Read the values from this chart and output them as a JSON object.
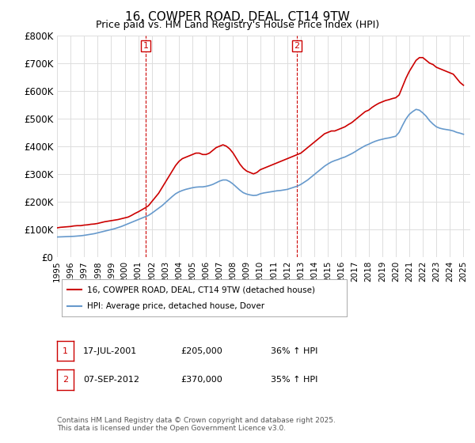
{
  "title": "16, COWPER ROAD, DEAL, CT14 9TW",
  "subtitle": "Price paid vs. HM Land Registry's House Price Index (HPI)",
  "xlabel": "",
  "ylabel": "",
  "ylim": [
    0,
    800000
  ],
  "xlim": [
    1995.0,
    2025.5
  ],
  "ytick_labels": [
    "£0",
    "£100K",
    "£200K",
    "£300K",
    "£400K",
    "£500K",
    "£600K",
    "£700K",
    "£800K"
  ],
  "ytick_values": [
    0,
    100000,
    200000,
    300000,
    400000,
    500000,
    600000,
    700000,
    800000
  ],
  "xtick_values": [
    1995,
    1996,
    1997,
    1998,
    1999,
    2000,
    2001,
    2002,
    2003,
    2004,
    2005,
    2006,
    2007,
    2008,
    2009,
    2010,
    2011,
    2012,
    2013,
    2014,
    2015,
    2016,
    2017,
    2018,
    2019,
    2020,
    2021,
    2022,
    2023,
    2024,
    2025
  ],
  "vline1_x": 2001.54,
  "vline1_label": "1",
  "vline1_date": "17-JUL-2001",
  "vline1_price": "£205,000",
  "vline1_hpi": "36% ↑ HPI",
  "vline2_x": 2012.69,
  "vline2_label": "2",
  "vline2_date": "07-SEP-2012",
  "vline2_price": "£370,000",
  "vline2_hpi": "35% ↑ HPI",
  "red_line_color": "#cc0000",
  "blue_line_color": "#6699cc",
  "background_color": "#ffffff",
  "grid_color": "#dddddd",
  "legend_label_red": "16, COWPER ROAD, DEAL, CT14 9TW (detached house)",
  "legend_label_blue": "HPI: Average price, detached house, Dover",
  "footnote": "Contains HM Land Registry data © Crown copyright and database right 2025.\nThis data is licensed under the Open Government Licence v3.0.",
  "red_x": [
    1995.0,
    1995.25,
    1995.5,
    1995.75,
    1996.0,
    1996.25,
    1996.5,
    1996.75,
    1997.0,
    1997.25,
    1997.5,
    1997.75,
    1998.0,
    1998.25,
    1998.5,
    1998.75,
    1999.0,
    1999.25,
    1999.5,
    1999.75,
    2000.0,
    2000.25,
    2000.5,
    2000.75,
    2001.0,
    2001.25,
    2001.5,
    2001.75,
    2002.0,
    2002.25,
    2002.5,
    2002.75,
    2003.0,
    2003.25,
    2003.5,
    2003.75,
    2004.0,
    2004.25,
    2004.5,
    2004.75,
    2005.0,
    2005.25,
    2005.5,
    2005.75,
    2006.0,
    2006.25,
    2006.5,
    2006.75,
    2007.0,
    2007.25,
    2007.5,
    2007.75,
    2008.0,
    2008.25,
    2008.5,
    2008.75,
    2009.0,
    2009.25,
    2009.5,
    2009.75,
    2010.0,
    2010.25,
    2010.5,
    2010.75,
    2011.0,
    2011.25,
    2011.5,
    2011.75,
    2012.0,
    2012.25,
    2012.5,
    2012.75,
    2013.0,
    2013.25,
    2013.5,
    2013.75,
    2014.0,
    2014.25,
    2014.5,
    2014.75,
    2015.0,
    2015.25,
    2015.5,
    2015.75,
    2016.0,
    2016.25,
    2016.5,
    2016.75,
    2017.0,
    2017.25,
    2017.5,
    2017.75,
    2018.0,
    2018.25,
    2018.5,
    2018.75,
    2019.0,
    2019.25,
    2019.5,
    2019.75,
    2020.0,
    2020.25,
    2020.5,
    2020.75,
    2021.0,
    2021.25,
    2021.5,
    2021.75,
    2022.0,
    2022.25,
    2022.5,
    2022.75,
    2023.0,
    2023.25,
    2023.5,
    2023.75,
    2024.0,
    2024.25,
    2024.5,
    2024.75,
    2025.0
  ],
  "red_y": [
    105000,
    107000,
    108000,
    109000,
    110000,
    112000,
    113000,
    113000,
    115000,
    116000,
    118000,
    119000,
    121000,
    124000,
    127000,
    129000,
    131000,
    133000,
    135000,
    138000,
    141000,
    144000,
    150000,
    157000,
    163000,
    170000,
    177000,
    185000,
    200000,
    215000,
    230000,
    250000,
    270000,
    290000,
    310000,
    330000,
    345000,
    355000,
    360000,
    365000,
    370000,
    375000,
    375000,
    370000,
    370000,
    375000,
    385000,
    395000,
    400000,
    405000,
    400000,
    390000,
    375000,
    355000,
    335000,
    320000,
    310000,
    305000,
    300000,
    305000,
    315000,
    320000,
    325000,
    330000,
    335000,
    340000,
    345000,
    350000,
    355000,
    360000,
    365000,
    370000,
    375000,
    385000,
    395000,
    405000,
    415000,
    425000,
    435000,
    445000,
    450000,
    455000,
    455000,
    460000,
    465000,
    470000,
    478000,
    485000,
    495000,
    505000,
    515000,
    525000,
    530000,
    540000,
    548000,
    555000,
    560000,
    565000,
    568000,
    572000,
    575000,
    585000,
    615000,
    645000,
    670000,
    690000,
    710000,
    720000,
    720000,
    710000,
    700000,
    695000,
    685000,
    680000,
    675000,
    670000,
    665000,
    660000,
    645000,
    630000,
    620000
  ],
  "blue_x": [
    1995.0,
    1995.25,
    1995.5,
    1995.75,
    1996.0,
    1996.25,
    1996.5,
    1996.75,
    1997.0,
    1997.25,
    1997.5,
    1997.75,
    1998.0,
    1998.25,
    1998.5,
    1998.75,
    1999.0,
    1999.25,
    1999.5,
    1999.75,
    2000.0,
    2000.25,
    2000.5,
    2000.75,
    2001.0,
    2001.25,
    2001.5,
    2001.75,
    2002.0,
    2002.25,
    2002.5,
    2002.75,
    2003.0,
    2003.25,
    2003.5,
    2003.75,
    2004.0,
    2004.25,
    2004.5,
    2004.75,
    2005.0,
    2005.25,
    2005.5,
    2005.75,
    2006.0,
    2006.25,
    2006.5,
    2006.75,
    2007.0,
    2007.25,
    2007.5,
    2007.75,
    2008.0,
    2008.25,
    2008.5,
    2008.75,
    2009.0,
    2009.25,
    2009.5,
    2009.75,
    2010.0,
    2010.25,
    2010.5,
    2010.75,
    2011.0,
    2011.25,
    2011.5,
    2011.75,
    2012.0,
    2012.25,
    2012.5,
    2012.75,
    2013.0,
    2013.25,
    2013.5,
    2013.75,
    2014.0,
    2014.25,
    2014.5,
    2014.75,
    2015.0,
    2015.25,
    2015.5,
    2015.75,
    2016.0,
    2016.25,
    2016.5,
    2016.75,
    2017.0,
    2017.25,
    2017.5,
    2017.75,
    2018.0,
    2018.25,
    2018.5,
    2018.75,
    2019.0,
    2019.25,
    2019.5,
    2019.75,
    2020.0,
    2020.25,
    2020.5,
    2020.75,
    2021.0,
    2021.25,
    2021.5,
    2021.75,
    2022.0,
    2022.25,
    2022.5,
    2022.75,
    2023.0,
    2023.25,
    2023.5,
    2023.75,
    2024.0,
    2024.25,
    2024.5,
    2024.75,
    2025.0
  ],
  "blue_y": [
    72000,
    72500,
    73000,
    73500,
    74000,
    74500,
    75500,
    76500,
    78000,
    80000,
    82000,
    84000,
    87000,
    90000,
    93000,
    96000,
    99000,
    102000,
    106000,
    110000,
    115000,
    120000,
    125000,
    130000,
    135000,
    140000,
    145000,
    150000,
    158000,
    167000,
    176000,
    185000,
    196000,
    207000,
    218000,
    228000,
    235000,
    240000,
    244000,
    247000,
    250000,
    252000,
    253000,
    253000,
    255000,
    258000,
    262000,
    268000,
    274000,
    278000,
    278000,
    272000,
    263000,
    252000,
    241000,
    232000,
    227000,
    224000,
    222000,
    223000,
    228000,
    231000,
    233000,
    235000,
    237000,
    239000,
    240000,
    242000,
    244000,
    248000,
    252000,
    256000,
    262000,
    270000,
    278000,
    288000,
    298000,
    308000,
    318000,
    328000,
    336000,
    343000,
    348000,
    352000,
    357000,
    361000,
    367000,
    373000,
    380000,
    388000,
    395000,
    402000,
    407000,
    413000,
    418000,
    422000,
    425000,
    428000,
    430000,
    433000,
    436000,
    450000,
    475000,
    498000,
    515000,
    525000,
    533000,
    530000,
    520000,
    508000,
    492000,
    480000,
    470000,
    465000,
    462000,
    460000,
    458000,
    455000,
    450000,
    447000,
    443000
  ]
}
